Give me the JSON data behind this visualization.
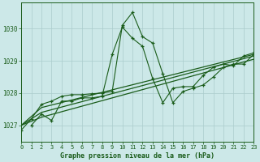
{
  "xlabel": "Graphe pression niveau de la mer (hPa)",
  "xlim": [
    0,
    23
  ],
  "ylim": [
    1026.5,
    1030.8
  ],
  "yticks": [
    1027,
    1028,
    1029,
    1030
  ],
  "xticks": [
    0,
    1,
    2,
    3,
    4,
    5,
    6,
    7,
    8,
    9,
    10,
    11,
    12,
    13,
    14,
    15,
    16,
    17,
    18,
    19,
    20,
    21,
    22,
    23
  ],
  "background_color": "#cce8e8",
  "grid_color": "#aacccc",
  "line_color": "#1a5c1a",
  "line1_x": [
    0,
    1,
    2,
    3,
    4,
    5,
    6,
    7,
    8,
    9,
    10,
    11,
    12,
    13,
    14,
    15,
    16,
    17,
    18,
    19,
    20,
    21,
    22,
    23
  ],
  "line1_y": [
    1026.85,
    1027.2,
    1027.65,
    1027.75,
    1027.9,
    1027.95,
    1027.95,
    1027.98,
    1028.0,
    1028.05,
    1030.1,
    1030.5,
    1029.75,
    1029.55,
    1028.6,
    1027.7,
    1028.05,
    1028.15,
    1028.25,
    1028.5,
    1028.8,
    1028.9,
    1028.9,
    1029.2
  ],
  "line2_x": [
    1,
    2,
    3,
    4,
    5,
    6,
    7,
    8,
    9,
    10,
    11,
    12,
    13,
    14,
    15,
    16,
    17,
    18,
    19,
    20,
    21,
    22,
    23
  ],
  "line2_y": [
    1027.0,
    1027.35,
    1027.15,
    1027.75,
    1027.75,
    1027.85,
    1027.85,
    1027.9,
    1029.2,
    1030.05,
    1029.7,
    1029.45,
    1028.45,
    1027.7,
    1028.15,
    1028.2,
    1028.2,
    1028.55,
    1028.8,
    1028.9,
    1028.85,
    1029.15,
    1029.25
  ],
  "line3_x": [
    0,
    2,
    23
  ],
  "line3_y": [
    1027.0,
    1027.55,
    1029.2
  ],
  "line4_x": [
    0,
    2,
    23
  ],
  "line4_y": [
    1027.0,
    1027.4,
    1029.15
  ],
  "line5_x": [
    0,
    2,
    23
  ],
  "line5_y": [
    1027.0,
    1027.25,
    1029.05
  ]
}
